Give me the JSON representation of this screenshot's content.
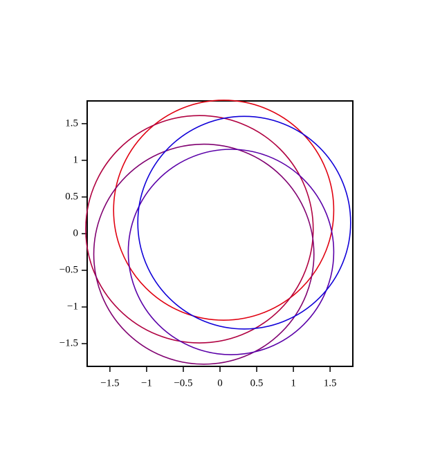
{
  "chart_data": {
    "type": "circle",
    "xlim": [
      -1.81,
      1.81
    ],
    "ylim": [
      -1.81,
      1.81
    ],
    "xticks": [
      {
        "value": -1.5,
        "label": "−1.5"
      },
      {
        "value": -1,
        "label": "−1"
      },
      {
        "value": -0.5,
        "label": "−0.5"
      },
      0,
      0.5,
      1,
      1.5
    ],
    "yticks": [
      {
        "value": -1.5,
        "label": "−1.5"
      },
      {
        "value": -1,
        "label": "−1"
      },
      {
        "value": -0.5,
        "label": "−0.5"
      },
      0,
      0.5,
      1,
      1.5
    ],
    "series": [
      {
        "color": "#e00010",
        "cx": 0.05,
        "cy": 0.32,
        "r": 1.5
      },
      {
        "color": "#b00040",
        "cx": -0.28,
        "cy": 0.06,
        "r": 1.55
      },
      {
        "color": "#800070",
        "cx": -0.22,
        "cy": -0.28,
        "r": 1.5
      },
      {
        "color": "#5a00a8",
        "cx": 0.15,
        "cy": -0.25,
        "r": 1.4
      },
      {
        "color": "#1000d8",
        "cx": 0.33,
        "cy": 0.15,
        "r": 1.45
      }
    ]
  }
}
